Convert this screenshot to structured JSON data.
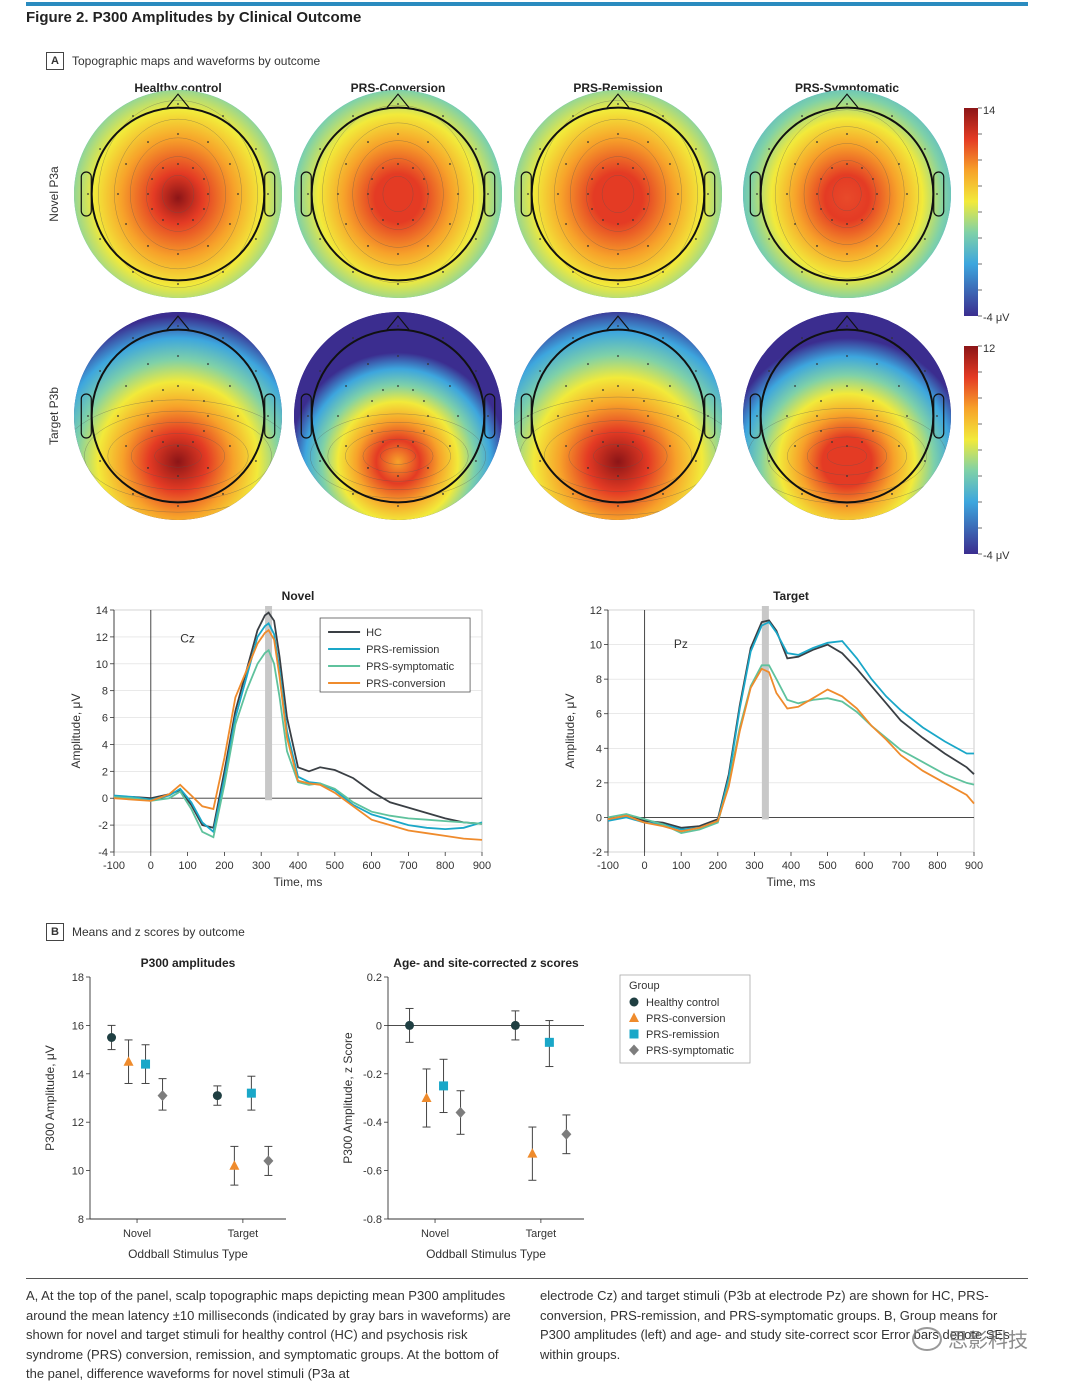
{
  "figure": {
    "title": "Figure 2. P300 Amplitudes by Clinical Outcome",
    "panel_a": {
      "letter": "A",
      "label": "Topographic maps and waveforms by outcome"
    },
    "panel_b": {
      "letter": "B",
      "label": "Means and z scores by outcome"
    }
  },
  "topo": {
    "groups": [
      "Healthy control",
      "PRS-Conversion",
      "PRS-Remission",
      "PRS-Symptomatic"
    ],
    "rows": [
      {
        "label": "Novel P3a",
        "scale_max": "14",
        "scale_min": "-4 μV",
        "peaks": [
          1.0,
          0.92,
          0.95,
          0.82
        ],
        "spread": [
          1.0,
          0.95,
          1.0,
          0.9
        ]
      },
      {
        "label": "Target P3b",
        "scale_max": "12",
        "scale_min": "-4 μV",
        "peaks": [
          1.0,
          0.6,
          1.0,
          0.72
        ],
        "spread": [
          1.0,
          0.75,
          1.05,
          0.85
        ]
      }
    ],
    "colors": [
      "#3b2d8f",
      "#3da6de",
      "#7fd1a8",
      "#f2ea3a",
      "#f7a22a",
      "#e43b24",
      "#8c1517"
    ]
  },
  "chart_data": [
    {
      "type": "line",
      "title": "Novel",
      "annotation": "Cz",
      "xlabel": "Time, ms",
      "ylabel": "Amplitude, μV",
      "xlim": [
        -100,
        900
      ],
      "ylim": [
        -4,
        14
      ],
      "xticks": [
        -100,
        0,
        100,
        200,
        300,
        400,
        500,
        600,
        700,
        800,
        900
      ],
      "yticks": [
        -4,
        -2,
        0,
        2,
        4,
        6,
        8,
        10,
        12,
        14
      ],
      "gray_bar": 320,
      "legend_position": "top-right",
      "series": [
        {
          "name": "HC",
          "color": "#3a3f44",
          "x": [
            -100,
            -50,
            0,
            50,
            80,
            110,
            140,
            170,
            200,
            230,
            260,
            290,
            310,
            320,
            335,
            350,
            370,
            400,
            430,
            460,
            500,
            550,
            600,
            650,
            700,
            750,
            800,
            850,
            900
          ],
          "y": [
            0.1,
            0.1,
            0,
            0.3,
            0.6,
            -0.5,
            -2.0,
            -2.2,
            2.0,
            6.5,
            9.5,
            12.5,
            13.6,
            13.8,
            13.2,
            10.5,
            6.0,
            2.3,
            2.0,
            2.3,
            2.1,
            1.5,
            0.5,
            -0.3,
            -0.7,
            -1.1,
            -1.5,
            -1.8,
            -1.9
          ]
        },
        {
          "name": "PRS-remission",
          "color": "#1aa7c8",
          "x": [
            -100,
            -50,
            0,
            50,
            80,
            110,
            140,
            170,
            200,
            230,
            260,
            290,
            310,
            320,
            335,
            350,
            370,
            400,
            430,
            460,
            500,
            550,
            600,
            650,
            700,
            750,
            800,
            850,
            900
          ],
          "y": [
            0.2,
            0.1,
            -0.1,
            0.2,
            0.7,
            -0.3,
            -1.8,
            -2.5,
            1.5,
            6.0,
            9.0,
            12.0,
            12.8,
            13.0,
            12.2,
            9.5,
            5.0,
            1.6,
            1.2,
            1.1,
            0.6,
            -0.5,
            -1.2,
            -1.6,
            -2.0,
            -2.2,
            -2.3,
            -2.2,
            -1.8
          ]
        },
        {
          "name": "PRS-symptomatic",
          "color": "#5fc29d",
          "x": [
            -100,
            -50,
            0,
            50,
            80,
            110,
            140,
            170,
            200,
            230,
            260,
            290,
            310,
            320,
            335,
            350,
            370,
            400,
            430,
            460,
            500,
            550,
            600,
            650,
            700,
            750,
            800,
            850,
            900
          ],
          "y": [
            0.1,
            0.0,
            -0.2,
            0.0,
            0.5,
            -0.8,
            -2.5,
            -2.9,
            1.0,
            5.5,
            8.0,
            10.0,
            10.8,
            11.0,
            10.0,
            7.5,
            3.5,
            1.2,
            1.0,
            1.1,
            0.7,
            -0.3,
            -1.0,
            -1.3,
            -1.5,
            -1.6,
            -1.7,
            -1.8,
            -1.9
          ]
        },
        {
          "name": "PRS-conversion",
          "color": "#ef8b2c",
          "x": [
            -100,
            -50,
            0,
            50,
            80,
            110,
            140,
            170,
            200,
            230,
            260,
            290,
            310,
            320,
            335,
            350,
            370,
            400,
            430,
            460,
            500,
            550,
            600,
            650,
            700,
            750,
            800,
            850,
            900
          ],
          "y": [
            0.0,
            -0.1,
            -0.2,
            0.3,
            1.0,
            0.2,
            -0.6,
            -0.8,
            3.0,
            7.5,
            9.5,
            11.5,
            12.3,
            12.5,
            11.8,
            9.0,
            4.5,
            1.3,
            1.1,
            1.0,
            0.4,
            -0.6,
            -1.6,
            -2.0,
            -2.4,
            -2.6,
            -2.8,
            -3.0,
            -3.1
          ]
        }
      ]
    },
    {
      "type": "line",
      "title": "Target",
      "annotation": "Pz",
      "xlabel": "Time, ms",
      "ylabel": "Amplitude, μV",
      "xlim": [
        -100,
        900
      ],
      "ylim": [
        -2,
        12
      ],
      "xticks": [
        -100,
        0,
        100,
        200,
        300,
        400,
        500,
        600,
        700,
        800,
        900
      ],
      "yticks": [
        -2,
        0,
        2,
        4,
        6,
        8,
        10,
        12
      ],
      "gray_bar": 330,
      "series": [
        {
          "name": "HC",
          "color": "#3a3f44",
          "x": [
            -100,
            -50,
            0,
            50,
            100,
            150,
            200,
            230,
            260,
            290,
            320,
            340,
            360,
            390,
            420,
            460,
            500,
            540,
            580,
            620,
            660,
            700,
            760,
            820,
            880,
            900
          ],
          "y": [
            -0.1,
            0.1,
            -0.2,
            -0.3,
            -0.6,
            -0.5,
            -0.1,
            2.5,
            6.5,
            9.8,
            11.3,
            11.4,
            10.8,
            9.2,
            9.3,
            9.7,
            10.0,
            9.5,
            8.6,
            7.6,
            6.6,
            5.6,
            4.6,
            3.7,
            2.9,
            2.5
          ]
        },
        {
          "name": "PRS-remission",
          "color": "#1aa7c8",
          "x": [
            -100,
            -50,
            0,
            50,
            100,
            150,
            200,
            230,
            260,
            290,
            320,
            340,
            360,
            390,
            420,
            460,
            500,
            540,
            580,
            620,
            660,
            700,
            760,
            820,
            880,
            900
          ],
          "y": [
            -0.2,
            0.0,
            -0.3,
            -0.4,
            -0.7,
            -0.6,
            -0.2,
            2.3,
            6.3,
            9.6,
            11.1,
            11.3,
            10.7,
            9.5,
            9.4,
            9.8,
            10.1,
            10.2,
            9.2,
            8.0,
            7.0,
            6.2,
            5.2,
            4.4,
            3.7,
            3.7
          ]
        },
        {
          "name": "PRS-symptomatic",
          "color": "#5fc29d",
          "x": [
            -100,
            -50,
            0,
            50,
            100,
            150,
            200,
            230,
            260,
            290,
            320,
            340,
            360,
            390,
            420,
            460,
            500,
            540,
            580,
            620,
            660,
            700,
            760,
            820,
            880,
            900
          ],
          "y": [
            0.0,
            0.2,
            -0.1,
            -0.4,
            -0.9,
            -0.7,
            -0.3,
            2.0,
            5.2,
            7.6,
            8.8,
            8.8,
            8.0,
            6.8,
            6.6,
            6.8,
            6.9,
            6.7,
            6.1,
            5.3,
            4.6,
            3.9,
            3.2,
            2.5,
            2.0,
            1.9
          ]
        },
        {
          "name": "PRS-conversion",
          "color": "#ef8b2c",
          "x": [
            -100,
            -50,
            0,
            50,
            100,
            150,
            200,
            230,
            260,
            290,
            320,
            340,
            360,
            390,
            420,
            460,
            500,
            540,
            580,
            620,
            660,
            700,
            760,
            820,
            880,
            900
          ],
          "y": [
            -0.1,
            0.1,
            -0.3,
            -0.5,
            -0.8,
            -0.6,
            -0.2,
            1.8,
            5.0,
            7.5,
            8.6,
            8.4,
            7.2,
            6.3,
            6.4,
            6.9,
            7.4,
            7.0,
            6.3,
            5.3,
            4.5,
            3.6,
            2.7,
            2.0,
            1.3,
            0.8
          ]
        }
      ]
    },
    {
      "type": "scatter",
      "title": "P300 amplitudes",
      "xlabel": "Oddball Stimulus Type",
      "ylabel": "P300 Amplitude, μV",
      "categories": [
        "Novel",
        "Target"
      ],
      "ylim": [
        8,
        18
      ],
      "yticks": [
        8,
        10,
        12,
        14,
        16,
        18
      ],
      "series": [
        {
          "name": "Healthy control",
          "marker": "circle",
          "color": "#1f3f42",
          "values": [
            15.5,
            13.1
          ],
          "lower": [
            15.0,
            12.7
          ],
          "upper": [
            16.0,
            13.5
          ]
        },
        {
          "name": "PRS-conversion",
          "marker": "triangle",
          "color": "#ef8b2c",
          "values": [
            14.5,
            10.2
          ],
          "lower": [
            13.6,
            9.4
          ],
          "upper": [
            15.4,
            11.0
          ]
        },
        {
          "name": "PRS-remission",
          "marker": "square",
          "color": "#1aa7c8",
          "values": [
            14.4,
            13.2
          ],
          "lower": [
            13.6,
            12.5
          ],
          "upper": [
            15.2,
            13.9
          ]
        },
        {
          "name": "PRS-symptomatic",
          "marker": "diamond",
          "color": "#7d7d7d",
          "values": [
            13.1,
            10.4
          ],
          "lower": [
            12.5,
            9.8
          ],
          "upper": [
            13.8,
            11.0
          ]
        }
      ]
    },
    {
      "type": "scatter",
      "title": "Age- and site-corrected z scores",
      "xlabel": "Oddball Stimulus Type",
      "ylabel": "P300 Amplitude, z Score",
      "categories": [
        "Novel",
        "Target"
      ],
      "ylim": [
        -0.8,
        0.2
      ],
      "yticks": [
        -0.8,
        -0.6,
        -0.4,
        -0.2,
        0,
        0.2
      ],
      "ytick_labels": [
        "-0.8",
        "-0.6",
        "-0.4",
        "-0.2",
        "0",
        "0.2"
      ],
      "legend_title": "Group",
      "legend_position": "right",
      "series": [
        {
          "name": "Healthy control",
          "marker": "circle",
          "color": "#1f3f42",
          "values": [
            0.0,
            0.0
          ],
          "lower": [
            -0.07,
            -0.06
          ],
          "upper": [
            0.07,
            0.06
          ]
        },
        {
          "name": "PRS-conversion",
          "marker": "triangle",
          "color": "#ef8b2c",
          "values": [
            -0.3,
            -0.53
          ],
          "lower": [
            -0.42,
            -0.64
          ],
          "upper": [
            -0.18,
            -0.42
          ]
        },
        {
          "name": "PRS-remission",
          "marker": "square",
          "color": "#1aa7c8",
          "values": [
            -0.25,
            -0.07
          ],
          "lower": [
            -0.36,
            -0.17
          ],
          "upper": [
            -0.14,
            0.02
          ]
        },
        {
          "name": "PRS-symptomatic",
          "marker": "diamond",
          "color": "#7d7d7d",
          "values": [
            -0.36,
            -0.45
          ],
          "lower": [
            -0.45,
            -0.53
          ],
          "upper": [
            -0.27,
            -0.37
          ]
        }
      ]
    }
  ],
  "caption": {
    "left": "A, At the top of the panel, scalp topographic maps depicting mean P300 amplitudes around the mean latency ±10 milliseconds (indicated by gray bars in waveforms) are shown for novel and target stimuli for healthy control (HC) and psychosis risk syndrome (PRS) conversion, remission, and symptomatic groups. At the bottom of the panel, difference waveforms for novel stimuli (P3a at",
    "right": "electrode Cz) and target stimuli (P3b at electrode Pz) are shown for HC, PRS-conversion, PRS-remission, and PRS-symptomatic groups. B, Group means for P300 amplitudes (left) and age- and study site-correct",
    "right_tail": "scor",
    "right_end": "Error bars denote SEs within groups."
  },
  "watermark": "思影科技"
}
